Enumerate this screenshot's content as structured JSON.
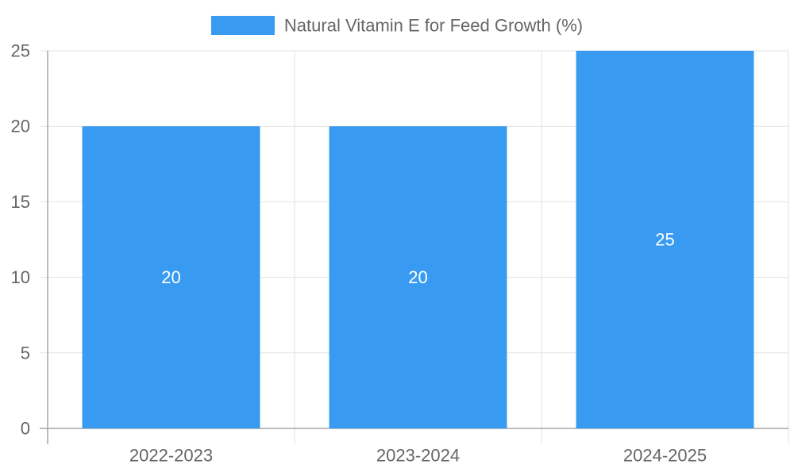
{
  "chart_data": {
    "type": "bar",
    "categories": [
      "2022-2023",
      "2023-2024",
      "2024-2025"
    ],
    "series": [
      {
        "name": "Natural Vitamin E for Feed Growth (%)",
        "values": [
          20,
          20,
          25
        ],
        "color": "#389BF1"
      }
    ],
    "ylim": [
      0,
      25
    ],
    "yticks": [
      0,
      5,
      10,
      15,
      20,
      25
    ],
    "grid": true,
    "legend": "top-center",
    "data_labels": true,
    "grid_color": "#E2E2E2",
    "axis_color": "#A6A6A6",
    "text_color": "#666666"
  }
}
